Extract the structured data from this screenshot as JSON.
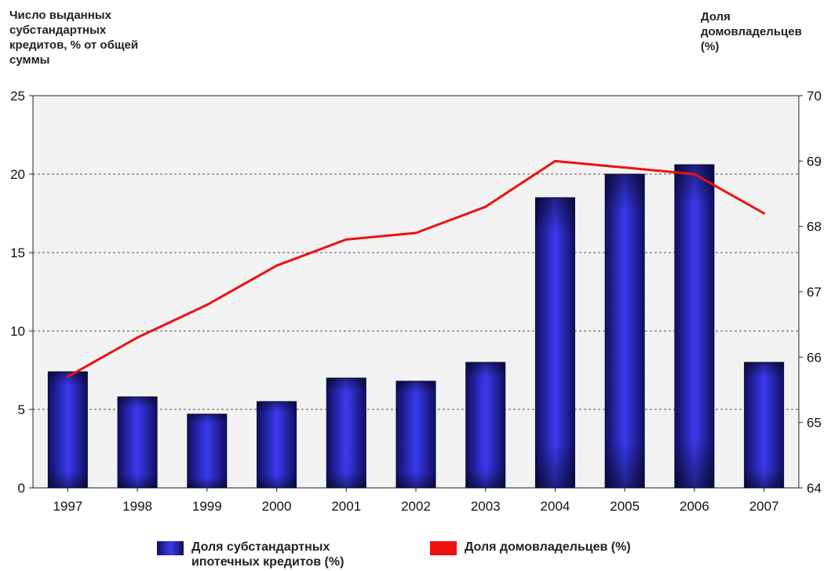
{
  "chart_data": {
    "type": "bar+line",
    "categories": [
      "1997",
      "1998",
      "1999",
      "2000",
      "2001",
      "2002",
      "2003",
      "2004",
      "2005",
      "2006",
      "2007"
    ],
    "y_left_label": "Число выданных\nсубстандартных\nкредитов, % от общей\nсуммы",
    "y_right_label": "Доля\nдомовладельцев\n(%)",
    "y_left_lim": [
      0,
      25
    ],
    "y_left_ticks": [
      "0",
      "5",
      "10",
      "15",
      "20",
      "25"
    ],
    "y_right_lim": [
      64,
      70
    ],
    "y_right_ticks": [
      "64",
      "65",
      "66",
      "67",
      "68",
      "69",
      "70"
    ],
    "grid": "horizontal dashed",
    "legend_placement": "bottom",
    "series": [
      {
        "name": "Доля субстандартных\nипотечных кредитов (%)",
        "type": "bar",
        "axis": "left",
        "color": "#2a2adf",
        "values": [
          7.4,
          5.8,
          4.7,
          5.5,
          7.0,
          6.8,
          8.0,
          18.5,
          20.0,
          20.6,
          8.0
        ]
      },
      {
        "name": "Доля домовладельцев (%)",
        "type": "line",
        "axis": "right",
        "color": "#ee1111",
        "values": [
          65.7,
          66.3,
          66.8,
          67.4,
          67.8,
          67.9,
          68.3,
          69.0,
          68.9,
          68.8,
          68.2
        ]
      }
    ]
  }
}
